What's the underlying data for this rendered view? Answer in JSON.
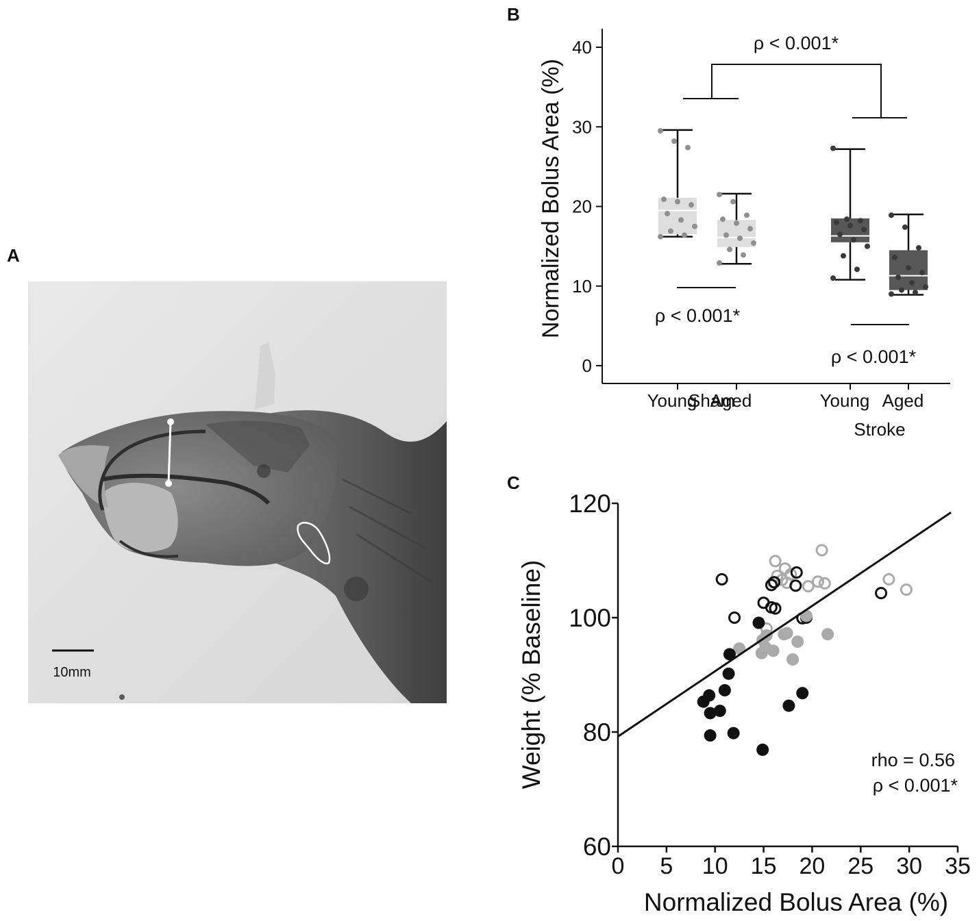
{
  "panels": {
    "a": "A",
    "b": "B",
    "c": "C"
  },
  "xray": {
    "scale_bar_label": "10mm"
  },
  "chart_data": [
    {
      "panel": "B",
      "type": "box",
      "ylabel": "Normalized Bolus Area (%)",
      "ylim": [
        0,
        40
      ],
      "yticks": [
        0,
        10,
        20,
        30,
        40
      ],
      "groups": [
        "Sham",
        "Stroke"
      ],
      "categories": [
        "Young",
        "Aged",
        "Young",
        "Aged"
      ],
      "boxes": [
        {
          "group": "Sham",
          "category": "Young",
          "color": "#dedede",
          "median_color": "#ffffff",
          "min": 16.2,
          "q1": 16.5,
          "median": 19.5,
          "q3": 21.1,
          "max": 29.6,
          "points": [
            29.5,
            28.2,
            27.4,
            20.9,
            20.6,
            20.2,
            19.1,
            18.3,
            17.5,
            16.9,
            16.4,
            16.2
          ]
        },
        {
          "group": "Sham",
          "category": "Aged",
          "color": "#dedede",
          "median_color": "#ffffff",
          "min": 12.8,
          "q1": 14.9,
          "median": 16.1,
          "q3": 18.3,
          "max": 21.6,
          "points": [
            21.5,
            20.6,
            18.9,
            18.4,
            17.9,
            17.2,
            16.4,
            16.0,
            15.4,
            14.6,
            13.9,
            12.9
          ]
        },
        {
          "group": "Stroke",
          "category": "Young",
          "color": "#575757",
          "median_color": "#ffffff",
          "min": 10.8,
          "q1": 15.5,
          "median": 16.3,
          "q3": 18.5,
          "max": 27.2,
          "points": [
            27.3,
            18.4,
            18.2,
            18.0,
            17.6,
            17.1,
            16.5,
            15.8,
            15.0,
            13.8,
            12.1,
            11.0
          ]
        },
        {
          "group": "Stroke",
          "category": "Aged",
          "color": "#575757",
          "median_color": "#ffffff",
          "min": 8.9,
          "q1": 9.5,
          "median": 11.3,
          "q3": 14.5,
          "max": 19.0,
          "points": [
            18.9,
            17.4,
            14.8,
            13.6,
            12.3,
            11.7,
            11.1,
            10.4,
            9.9,
            9.5,
            9.2,
            9.0
          ]
        }
      ],
      "annotations": [
        {
          "text": "ρ < 0.001*",
          "compares": "Sham vs Stroke"
        },
        {
          "text": "ρ < 0.001*",
          "compares": "Sham Young vs Sham Aged"
        },
        {
          "text": "ρ < 0.001*",
          "compares": "Stroke Young vs Stroke Aged"
        }
      ]
    },
    {
      "panel": "C",
      "type": "scatter",
      "xlabel": "Normalized Bolus Area (%)",
      "ylabel": "Weight (% Baseline)",
      "xlim": [
        0,
        35
      ],
      "ylim": [
        60,
        120
      ],
      "xticks": [
        0,
        5,
        10,
        15,
        20,
        25,
        30,
        35
      ],
      "yticks": [
        60,
        80,
        100,
        120
      ],
      "fit_line": {
        "x": [
          0,
          34.3
        ],
        "y": [
          79.2,
          118.4
        ]
      },
      "stats": [
        "rho = 0.56",
        "ρ < 0.001*"
      ],
      "series": [
        {
          "marker": "open",
          "color": "#aaaaaa",
          "points": [
            [
              16.2,
              109.9
            ],
            [
              17.2,
              108.6
            ],
            [
              16.9,
              106.6
            ],
            [
              17.8,
              107.6
            ],
            [
              16.4,
              107.3
            ],
            [
              16.0,
              106.2
            ],
            [
              17.4,
              106.1
            ],
            [
              21.0,
              111.8
            ],
            [
              20.6,
              106.3
            ],
            [
              21.3,
              106.0
            ],
            [
              19.6,
              105.5
            ],
            [
              27.9,
              106.7
            ],
            [
              29.7,
              104.9
            ],
            [
              15.3,
              98.1
            ]
          ]
        },
        {
          "marker": "open",
          "color": "#111111",
          "points": [
            [
              10.7,
              106.7
            ],
            [
              12.0,
              100.0
            ],
            [
              15.0,
              102.6
            ],
            [
              15.8,
              101.8
            ],
            [
              16.2,
              101.6
            ],
            [
              15.8,
              105.7
            ],
            [
              16.1,
              106.2
            ],
            [
              18.4,
              107.9
            ],
            [
              18.3,
              105.6
            ],
            [
              19.0,
              99.9
            ],
            [
              19.4,
              100.0
            ],
            [
              27.1,
              104.3
            ]
          ]
        },
        {
          "marker": "filled",
          "color": "#aaaaaa",
          "points": [
            [
              12.5,
              94.6
            ],
            [
              14.8,
              93.8
            ],
            [
              14.9,
              96.1
            ],
            [
              15.2,
              94.8
            ],
            [
              15.3,
              96.9
            ],
            [
              16.0,
              94.2
            ],
            [
              17.1,
              97.1
            ],
            [
              17.4,
              97.3
            ],
            [
              18.0,
              92.7
            ],
            [
              18.5,
              95.8
            ],
            [
              19.4,
              100.3
            ],
            [
              21.6,
              97.1
            ]
          ]
        },
        {
          "marker": "filled",
          "color": "#111111",
          "points": [
            [
              11.5,
              93.6
            ],
            [
              14.5,
              99.1
            ],
            [
              11.4,
              90.2
            ],
            [
              11.0,
              87.3
            ],
            [
              9.4,
              86.4
            ],
            [
              8.8,
              85.3
            ],
            [
              9.5,
              83.3
            ],
            [
              10.5,
              83.7
            ],
            [
              9.5,
              79.4
            ],
            [
              11.9,
              79.8
            ],
            [
              14.9,
              76.9
            ],
            [
              17.6,
              84.6
            ],
            [
              19.0,
              86.8
            ]
          ]
        }
      ]
    }
  ]
}
